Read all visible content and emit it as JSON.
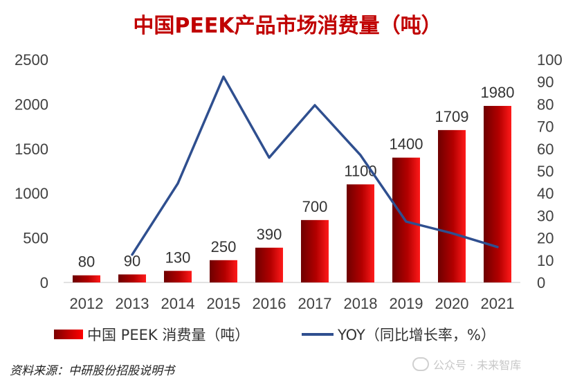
{
  "title": "中国PEEK产品市场消费量（吨）",
  "source": "资料来源：中研股份招股说明书",
  "watermark": "公众号 · 未来智库",
  "chart_data": {
    "type": "bar",
    "title": "中国PEEK产品市场消费量（吨）",
    "categories": [
      "2012",
      "2013",
      "2014",
      "2015",
      "2016",
      "2017",
      "2018",
      "2019",
      "2020",
      "2021"
    ],
    "series": [
      {
        "name": "中国 PEEK 消费量（吨）",
        "type": "bar",
        "axis": "left",
        "values": [
          80,
          90,
          130,
          250,
          390,
          700,
          1100,
          1400,
          1709,
          1980
        ],
        "labels": [
          "80",
          "90",
          "130",
          "250",
          "390",
          "700",
          "1100",
          "1400",
          "1709",
          "1980"
        ]
      },
      {
        "name": "YOY（同比增长率，%）",
        "type": "line",
        "axis": "right",
        "values": [
          null,
          12.5,
          44.4,
          92.3,
          56.0,
          79.5,
          57.1,
          27.3,
          22.1,
          15.9
        ]
      }
    ],
    "ylim_left": [
      0,
      2500
    ],
    "yticks_left": [
      0,
      500,
      1000,
      1500,
      2000,
      2500
    ],
    "ylim_right": [
      0,
      100
    ],
    "yticks_right": [
      0,
      10,
      20,
      30,
      40,
      50,
      60,
      70,
      80,
      90,
      100
    ],
    "grid": false,
    "legend_position": "bottom",
    "colors": {
      "bar_dark": "#7a0000",
      "bar_mid": "#c00000",
      "bar_light": "#ff1a1a",
      "line": "#2f4f8f",
      "title": "#c00000"
    }
  }
}
